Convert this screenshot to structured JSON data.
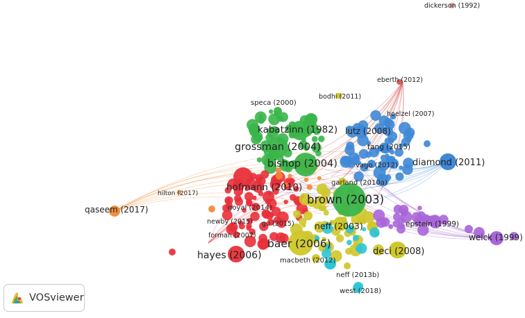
{
  "app": {
    "name": "VOSviewer"
  },
  "colors": {
    "red": "#e8303a",
    "green": "#3ab54a",
    "blue": "#3f88d6",
    "yellow": "#cfc72a",
    "purple": "#a866d8",
    "cyan": "#2ec5d3",
    "orange": "#f08a36",
    "brown": "#d45f5f",
    "pink": "#e0a0a0"
  },
  "network": {
    "labels": [
      {
        "text": "dickerson (1992)",
        "cluster": "pink",
        "size": "small"
      },
      {
        "text": "eberth (2012)",
        "cluster": "brown",
        "size": "small"
      },
      {
        "text": "bodhi (2011)",
        "cluster": "yellow",
        "size": "small"
      },
      {
        "text": "speca (2000)",
        "cluster": "green",
        "size": "small"
      },
      {
        "text": "hoelzel (2007)",
        "cluster": "blue",
        "size": "small"
      },
      {
        "text": "kabatzinn (1982)",
        "cluster": "green",
        "size": "large"
      },
      {
        "text": "lutz (2008)",
        "cluster": "blue",
        "size": "medium"
      },
      {
        "text": "grossman (2004)",
        "cluster": "green",
        "size": "large"
      },
      {
        "text": "tang (2015)",
        "cluster": "blue",
        "size": "small"
      },
      {
        "text": "bishop (2004)",
        "cluster": "green",
        "size": "large"
      },
      {
        "text": "vago (2012)",
        "cluster": "blue",
        "size": "small"
      },
      {
        "text": "diamond (2011)",
        "cluster": "blue",
        "size": "medium"
      },
      {
        "text": "garland (2010a)",
        "cluster": "yellow",
        "size": "small"
      },
      {
        "text": "hofmann (2010)",
        "cluster": "red",
        "size": "medium"
      },
      {
        "text": "hilton (2017)",
        "cluster": "orange",
        "size": "small"
      },
      {
        "text": "brown (2003)",
        "cluster": "green",
        "size": "xlarge"
      },
      {
        "text": "qaseem (2017)",
        "cluster": "orange",
        "size": "medium"
      },
      {
        "text": "goyal (2014)",
        "cluster": "red",
        "size": "small"
      },
      {
        "text": "newby (2015)",
        "cluster": "red",
        "size": "small"
      },
      {
        "text": "gu (2015)",
        "cluster": "red",
        "size": "small"
      },
      {
        "text": "epstein (1999)",
        "cluster": "purple",
        "size": "small"
      },
      {
        "text": "neff (2003)",
        "cluster": "yellow",
        "size": "medium"
      },
      {
        "text": "forman (2007)",
        "cluster": "red",
        "size": "small"
      },
      {
        "text": "weick (1999)",
        "cluster": "purple",
        "size": "medium"
      },
      {
        "text": "baer (2006)",
        "cluster": "yellow",
        "size": "large"
      },
      {
        "text": "deci (2008)",
        "cluster": "yellow",
        "size": "medium"
      },
      {
        "text": "hayes (2006)",
        "cluster": "red",
        "size": "large"
      },
      {
        "text": "macbeth (2012)",
        "cluster": "yellow",
        "size": "small"
      },
      {
        "text": "neff (2013b)",
        "cluster": "cyan",
        "size": "small"
      },
      {
        "text": "west (2018)",
        "cluster": "cyan",
        "size": "small"
      }
    ]
  }
}
